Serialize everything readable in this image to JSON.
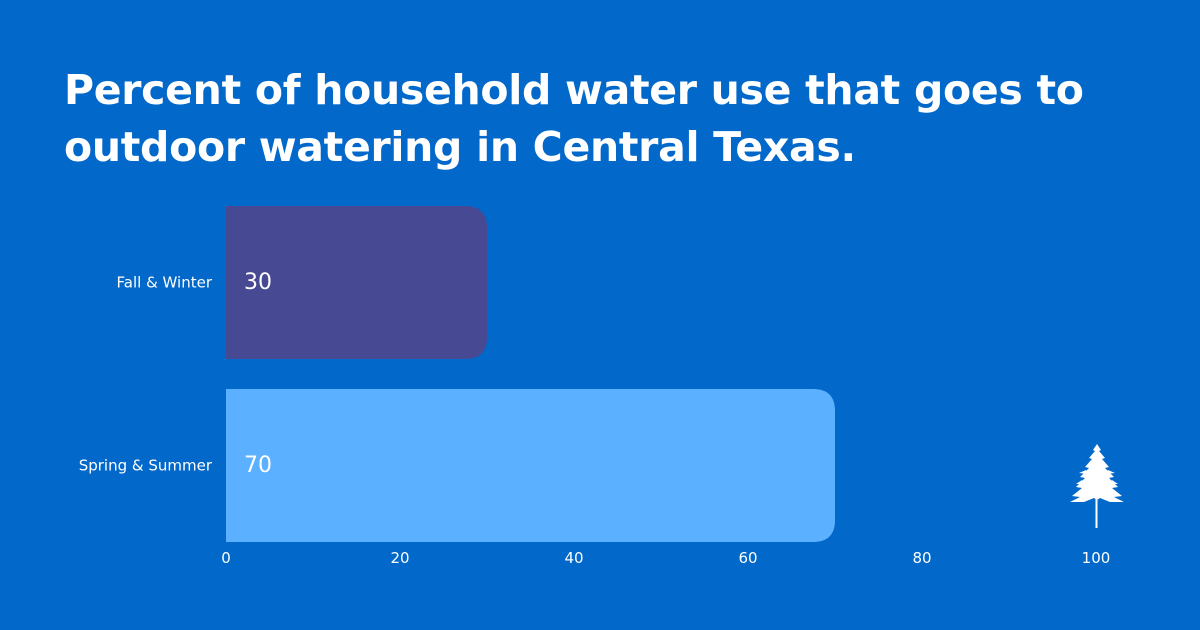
{
  "title": "Percent of household water use that goes to outdoor watering in Central Texas.",
  "background_color": "#0268c9",
  "logo_icon": "tree-icon",
  "chart_data": {
    "type": "bar",
    "orientation": "horizontal",
    "title": "Percent of household water use that goes to outdoor watering in Central Texas.",
    "xlabel": "",
    "ylabel": "",
    "categories": [
      "Fall & Winter",
      "Spring & Summer"
    ],
    "values": [
      30,
      70
    ],
    "colors": [
      "#474a92",
      "#5bb1ff"
    ],
    "xlim": [
      0,
      100
    ],
    "x_ticks": [
      0,
      20,
      40,
      60,
      80,
      100
    ],
    "grid": false,
    "legend": "none"
  }
}
